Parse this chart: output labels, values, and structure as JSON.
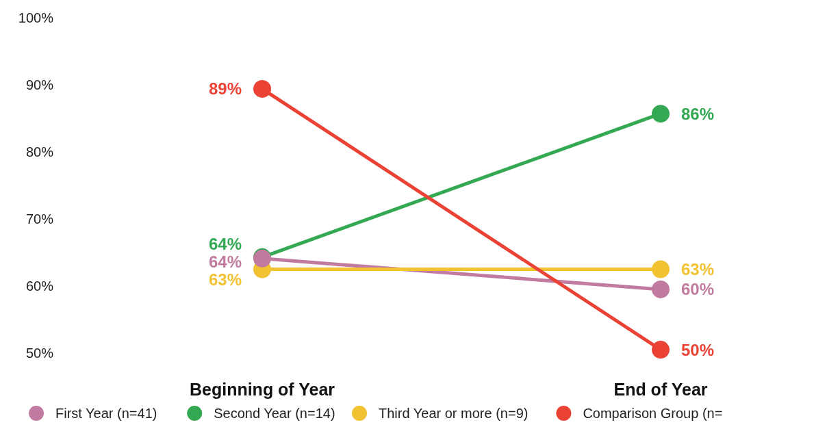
{
  "chart_data": {
    "type": "line",
    "categories": [
      "Beginning of Year",
      "End of Year"
    ],
    "series": [
      {
        "name": "First Year (n=41)",
        "color": "#c27ba0",
        "values": [
          64.1,
          59.5
        ],
        "value_labels": [
          "64%",
          "60%"
        ]
      },
      {
        "name": "Second Year (n=14)",
        "color": "#34a853",
        "values": [
          64.3,
          85.7
        ],
        "value_labels": [
          "64%",
          "86%"
        ]
      },
      {
        "name": "Third Year or more (n=9)",
        "color": "#f1c232",
        "values": [
          62.5,
          62.5
        ],
        "value_labels": [
          "63%",
          "63%"
        ]
      },
      {
        "name": "Comparison Group (n=",
        "color": "#ea4335",
        "values": [
          89.4,
          50.5
        ],
        "value_labels": [
          "89%",
          "50%"
        ]
      }
    ],
    "ylim": [
      50,
      100
    ],
    "yticks": [
      {
        "value": 50,
        "label": "50%"
      },
      {
        "value": 60,
        "label": "60%"
      },
      {
        "value": 70,
        "label": "70%"
      },
      {
        "value": 80,
        "label": "80%"
      },
      {
        "value": 90,
        "label": "90%"
      },
      {
        "value": 100,
        "label": "100%"
      }
    ],
    "legend": "bottom",
    "marker": "circle",
    "grid": false
  }
}
